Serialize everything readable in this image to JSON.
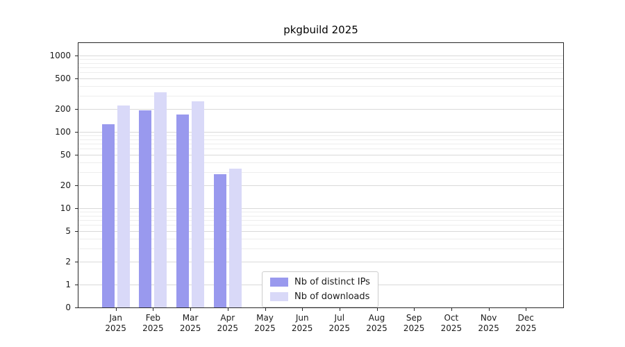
{
  "chart_data": {
    "type": "bar",
    "title": "pkgbuild 2025",
    "year_label": "2025",
    "categories": [
      "Jan",
      "Feb",
      "Mar",
      "Apr",
      "May",
      "Jun",
      "Jul",
      "Aug",
      "Sep",
      "Oct",
      "Nov",
      "Dec"
    ],
    "series": [
      {
        "name": "Nb of distinct IPs",
        "key": "distinct-ips",
        "color": "#9999ee",
        "values": [
          125,
          190,
          170,
          28,
          null,
          null,
          null,
          null,
          null,
          null,
          null,
          null
        ]
      },
      {
        "name": "Nb of downloads",
        "key": "downloads",
        "color": "#d9d9f8",
        "values": [
          220,
          330,
          250,
          33,
          null,
          null,
          null,
          null,
          null,
          null,
          null,
          null
        ]
      }
    ],
    "yscale": "symlog",
    "yticks": [
      0,
      1,
      2,
      5,
      10,
      20,
      50,
      100,
      200,
      500,
      1000
    ],
    "ylim": [
      0,
      1500
    ],
    "xlabel": "",
    "ylabel": "",
    "grid": "horizontal major and minor gridlines",
    "legend_position": "inside plot, lower center-left"
  },
  "colors": {
    "bar_distinct_ips": "#9999ee",
    "bar_downloads": "#d9d9f8",
    "grid_major": "#d9d9d9",
    "grid_minor": "#ededed",
    "axis": "#262626",
    "background": "#ffffff"
  }
}
